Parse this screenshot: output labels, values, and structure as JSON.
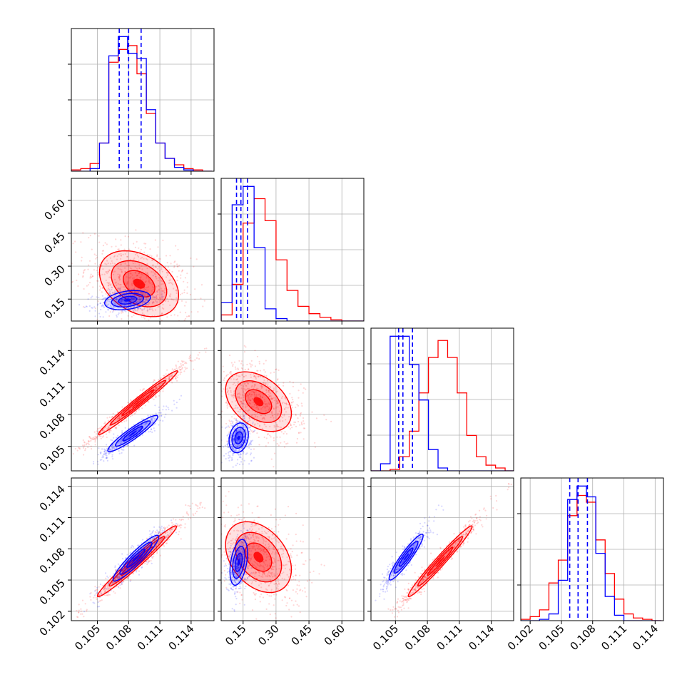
{
  "chart_data": {
    "type": "corner",
    "grid": true,
    "series": [
      {
        "name": "",
        "color": "#0000ff"
      },
      {
        "name": "",
        "color": "#ff0000"
      }
    ],
    "tick_labels": {
      "a": [
        "0.105",
        "0.108",
        "0.111",
        "0.114"
      ],
      "b": [
        "0.15",
        "0.30",
        "0.45",
        "0.60"
      ],
      "c": [
        "0.105",
        "0.108",
        "0.111",
        "0.114"
      ],
      "d": [
        "0.102",
        "0.105",
        "0.108",
        "0.111",
        "0.114"
      ]
    },
    "params": [
      {
        "key": "a",
        "range": [
          0.1025,
          0.1162
        ],
        "ticks": [
          0.105,
          0.108,
          0.111,
          0.114
        ]
      },
      {
        "key": "b",
        "range": [
          0.05,
          0.7
        ],
        "ticks": [
          0.15,
          0.3,
          0.45,
          0.6
        ]
      },
      {
        "key": "c",
        "range": [
          0.1027,
          0.1161
        ],
        "ticks": [
          0.105,
          0.108,
          0.111,
          0.114
        ]
      },
      {
        "key": "d",
        "range": [
          0.1011,
          0.1148
        ],
        "ticks": [
          0.102,
          0.105,
          0.108,
          0.111,
          0.114
        ]
      }
    ],
    "marginals": [
      {
        "param": "a",
        "edges": [
          0.1025,
          0.1034,
          0.1043,
          0.1052,
          0.1061,
          0.107,
          0.1079,
          0.1088,
          0.1097,
          0.1106,
          0.1115,
          0.1124,
          0.1133,
          0.1142,
          0.1151,
          0.116
        ],
        "blue": [
          0,
          0,
          2,
          22,
          90,
          105,
          92,
          88,
          48,
          22,
          10,
          3,
          1,
          0,
          0
        ],
        "red": [
          1,
          2,
          6,
          22,
          85,
          95,
          98,
          76,
          45,
          22,
          10,
          5,
          2,
          1,
          0
        ],
        "quantiles_blue": [
          0.1071,
          0.108,
          0.1092
        ]
      },
      {
        "param": "b",
        "edges": [
          0.05,
          0.1,
          0.15,
          0.2,
          0.25,
          0.3,
          0.35,
          0.4,
          0.45,
          0.5,
          0.55,
          0.6,
          0.65,
          0.7
        ],
        "blue": [
          15,
          95,
          110,
          60,
          10,
          2,
          0,
          0,
          0,
          0,
          0,
          0,
          0
        ],
        "red": [
          5,
          30,
          80,
          100,
          82,
          50,
          25,
          12,
          6,
          3,
          1,
          0,
          0
        ],
        "quantiles_blue": [
          0.12,
          0.14,
          0.17
        ]
      },
      {
        "param": "c",
        "edges": [
          0.1027,
          0.1036,
          0.1045,
          0.1054,
          0.1063,
          0.1072,
          0.1081,
          0.109,
          0.1099,
          0.1108,
          0.1117,
          0.1126,
          0.1135,
          0.1144,
          0.1153,
          0.1162
        ],
        "blue": [
          0,
          5,
          95,
          95,
          75,
          50,
          15,
          2,
          0,
          0,
          0,
          0,
          0,
          0,
          0
        ],
        "red": [
          0,
          0,
          1,
          10,
          28,
          55,
          80,
          92,
          80,
          55,
          25,
          10,
          4,
          2,
          0
        ],
        "quantiles_blue": [
          0.1053,
          0.1057,
          0.1066
        ]
      },
      {
        "param": "d",
        "edges": [
          0.1011,
          0.102,
          0.1029,
          0.1038,
          0.1047,
          0.1056,
          0.1065,
          0.1074,
          0.1083,
          0.1092,
          0.1101,
          0.111,
          0.1119,
          0.1128,
          0.1137,
          0.1146
        ],
        "blue": [
          0,
          0,
          1,
          5,
          30,
          90,
          100,
          92,
          50,
          18,
          4,
          0,
          0,
          0,
          0
        ],
        "red": [
          1,
          3,
          8,
          28,
          45,
          78,
          93,
          88,
          60,
          35,
          16,
          5,
          2,
          1,
          0
        ],
        "quantiles_blue": [
          0.1058,
          0.1066,
          0.1075
        ]
      }
    ],
    "joints": [
      {
        "x": "a",
        "y": "b",
        "blue": {
          "cx": 0.1079,
          "cy": 0.145,
          "sx": 0.0011,
          "sy": 0.022,
          "rho": 0.3
        },
        "red": {
          "cx": 0.109,
          "cy": 0.22,
          "sx": 0.0019,
          "sy": 0.075,
          "rho": -0.35
        }
      },
      {
        "x": "a",
        "y": "c",
        "blue": {
          "cx": 0.1084,
          "cy": 0.1062,
          "sx": 0.0012,
          "sy": 0.00085,
          "rho": 0.93
        },
        "red": {
          "cx": 0.1089,
          "cy": 0.1091,
          "sx": 0.0019,
          "sy": 0.0015,
          "rho": 0.985
        }
      },
      {
        "x": "a",
        "y": "d",
        "blue": {
          "cx": 0.1087,
          "cy": 0.1071,
          "sx": 0.0011,
          "sy": 0.0011,
          "rho": 0.93
        },
        "red": {
          "cx": 0.1088,
          "cy": 0.1068,
          "sx": 0.0019,
          "sy": 0.0017,
          "rho": 0.98
        }
      },
      {
        "x": "b",
        "y": "c",
        "blue": {
          "cx": 0.13,
          "cy": 0.1058,
          "sx": 0.022,
          "sy": 0.0007,
          "rho": 0.2
        },
        "red": {
          "cx": 0.22,
          "cy": 0.1092,
          "sx": 0.075,
          "sy": 0.0014,
          "rho": -0.4
        }
      },
      {
        "x": "b",
        "y": "d",
        "blue": {
          "cx": 0.13,
          "cy": 0.1067,
          "sx": 0.02,
          "sy": 0.0011,
          "rho": 0.4
        },
        "red": {
          "cx": 0.22,
          "cy": 0.1072,
          "sx": 0.075,
          "sy": 0.0017,
          "rho": -0.35
        }
      },
      {
        "x": "c",
        "y": "d",
        "blue": {
          "cx": 0.106,
          "cy": 0.1072,
          "sx": 0.0008,
          "sy": 0.0011,
          "rho": 0.93
        },
        "red": {
          "cx": 0.1092,
          "cy": 0.1068,
          "sx": 0.0015,
          "sy": 0.0017,
          "rho": 0.98
        }
      }
    ]
  }
}
